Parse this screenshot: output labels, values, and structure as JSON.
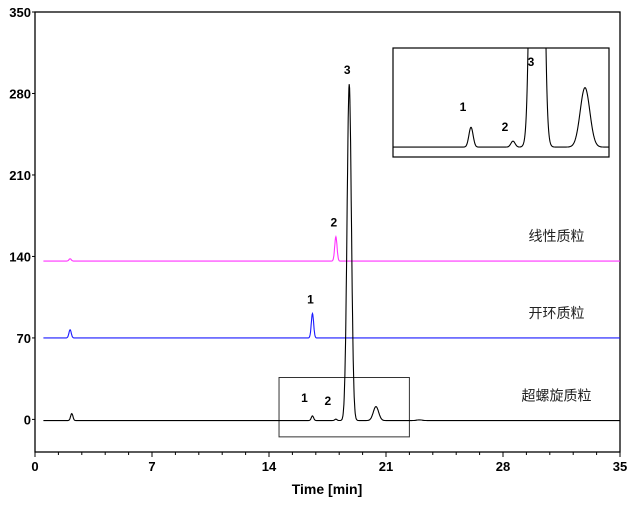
{
  "chart_data": {
    "type": "line",
    "title": "",
    "xlabel": "Time [min]",
    "ylabel": "",
    "xlim": [
      0,
      35
    ],
    "ylim": [
      -28,
      350
    ],
    "xticks": [
      "0",
      "7",
      "14",
      "21",
      "28",
      "35"
    ],
    "yticks": [
      "0",
      "70",
      "140",
      "210",
      "280",
      "350"
    ],
    "grid": false,
    "series": [
      {
        "name": "线性质粒",
        "color": "#ff33ff",
        "baseline": 136,
        "peaks": [
          {
            "time": 2.1,
            "height": 2,
            "label": ""
          },
          {
            "time": 18.0,
            "height": 21,
            "label": "2"
          }
        ]
      },
      {
        "name": "开环质粒",
        "color": "#1a1aff",
        "baseline": 70,
        "peaks": [
          {
            "time": 2.1,
            "height": 7,
            "label": ""
          },
          {
            "time": 16.6,
            "height": 21,
            "label": "1"
          }
        ]
      },
      {
        "name": "超螺旋质粒",
        "color": "#000000",
        "baseline": -1,
        "peaks": [
          {
            "time": 2.2,
            "height": 6,
            "label": ""
          },
          {
            "time": 16.6,
            "height": 4,
            "label": "1"
          },
          {
            "time": 18.0,
            "height": 1.2,
            "label": "2"
          },
          {
            "time": 18.8,
            "height": 289,
            "label": "3"
          },
          {
            "time": 20.4,
            "height": 12,
            "label": ""
          },
          {
            "time": 23.0,
            "height": 0.6,
            "label": ""
          }
        ]
      }
    ],
    "inset": {
      "source_series": "超螺旋质粒",
      "xlim": [
        14,
        21.2
      ],
      "ylim": [
        -3,
        19
      ],
      "labels": [
        "1",
        "2",
        "3"
      ]
    }
  }
}
